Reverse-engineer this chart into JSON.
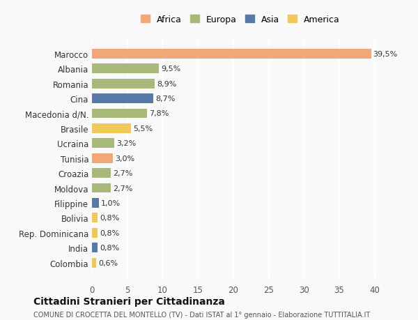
{
  "categories": [
    "Marocco",
    "Albania",
    "Romania",
    "Cina",
    "Macedonia d/N.",
    "Brasile",
    "Ucraina",
    "Tunisia",
    "Croazia",
    "Moldova",
    "Filippine",
    "Bolivia",
    "Rep. Dominicana",
    "India",
    "Colombia"
  ],
  "values": [
    39.5,
    9.5,
    8.9,
    8.7,
    7.8,
    5.5,
    3.2,
    3.0,
    2.7,
    2.7,
    1.0,
    0.8,
    0.8,
    0.8,
    0.6
  ],
  "labels": [
    "39,5%",
    "9,5%",
    "8,9%",
    "8,7%",
    "7,8%",
    "5,5%",
    "3,2%",
    "3,0%",
    "2,7%",
    "2,7%",
    "1,0%",
    "0,8%",
    "0,8%",
    "0,8%",
    "0,6%"
  ],
  "continents": [
    "Africa",
    "Europa",
    "Europa",
    "Asia",
    "Europa",
    "America",
    "Europa",
    "Africa",
    "Europa",
    "Europa",
    "Asia",
    "America",
    "America",
    "Asia",
    "America"
  ],
  "colors": {
    "Africa": "#F0A878",
    "Europa": "#A8B878",
    "Asia": "#5878A8",
    "America": "#F0C858"
  },
  "legend_order": [
    "Africa",
    "Europa",
    "Asia",
    "America"
  ],
  "xlim": [
    0,
    42
  ],
  "xticks": [
    0,
    5,
    10,
    15,
    20,
    25,
    30,
    35,
    40
  ],
  "title": "Cittadini Stranieri per Cittadinanza",
  "subtitle": "COMUNE DI CROCETTA DEL MONTELLO (TV) - Dati ISTAT al 1° gennaio - Elaborazione TUTTITALIA.IT",
  "bg_color": "#f9f9f9",
  "bar_height": 0.65
}
